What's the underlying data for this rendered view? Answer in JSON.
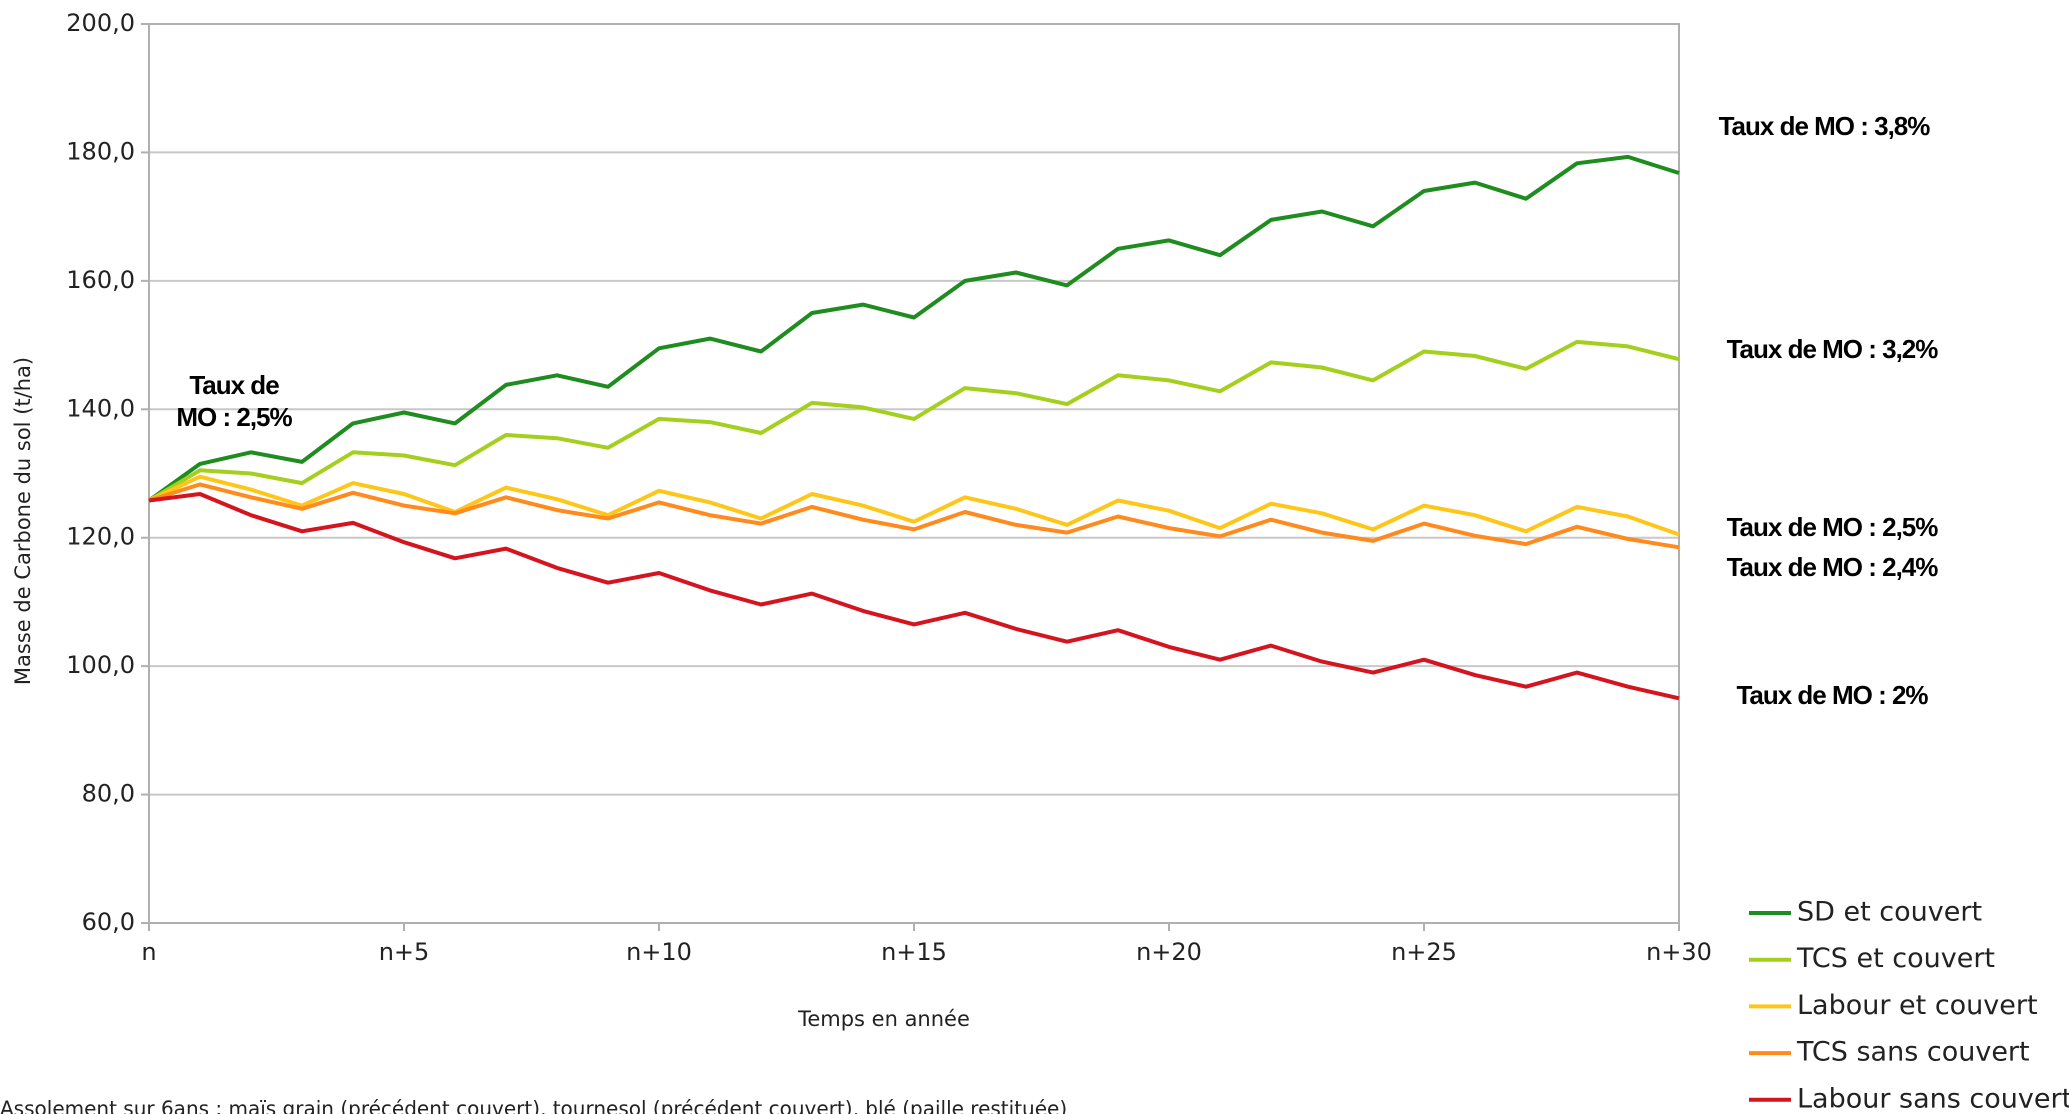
{
  "chart_data": {
    "type": "line",
    "x_label": "Temps en année",
    "y_label": "Masse de Carbone du sol (t/ha)",
    "footnote": "Assolement sur 6ans : maïs grain (précédent couvert), tournesol (précédent couvert), blé (paille restituée)",
    "categories": [
      "n",
      null,
      null,
      null,
      null,
      "n+5",
      null,
      null,
      null,
      null,
      "n+10",
      null,
      null,
      null,
      null,
      "n+15",
      null,
      null,
      null,
      null,
      "n+20",
      null,
      null,
      null,
      null,
      "n+25",
      null,
      null,
      null,
      null,
      "n+30"
    ],
    "ylim": [
      60,
      200
    ],
    "yticks": [
      {
        "value": 60,
        "label": "60,0"
      },
      {
        "value": 80,
        "label": "80,0"
      },
      {
        "value": 100,
        "label": "100,0"
      },
      {
        "value": 120,
        "label": "120,0"
      },
      {
        "value": 140,
        "label": "140,0"
      },
      {
        "value": 160,
        "label": "160,0"
      },
      {
        "value": 180,
        "label": "180,0"
      },
      {
        "value": 200,
        "label": "200,0"
      }
    ],
    "grid": true,
    "legend": "bottom-right",
    "series": [
      {
        "name": "SD et couvert",
        "color": "#1e8c1e",
        "values": [
          125.8,
          131.5,
          133.3,
          131.8,
          137.8,
          139.5,
          137.8,
          143.8,
          145.3,
          143.5,
          149.5,
          151,
          149,
          155,
          156.3,
          154.3,
          160,
          161.3,
          159.3,
          165,
          166.3,
          164,
          169.5,
          170.8,
          168.5,
          174,
          175.3,
          172.8,
          178.3,
          179.3,
          176.8
        ]
      },
      {
        "name": "TCS et couvert",
        "color": "#a5cf1e",
        "values": [
          125.8,
          130.5,
          130,
          128.5,
          133.3,
          132.8,
          131.3,
          136,
          135.5,
          134,
          138.5,
          138,
          136.3,
          141,
          140.3,
          138.5,
          143.3,
          142.5,
          140.8,
          145.3,
          144.5,
          142.8,
          147.3,
          146.5,
          144.5,
          149,
          148.3,
          146.3,
          150.5,
          149.8,
          147.8
        ]
      },
      {
        "name": "Labour et couvert",
        "color": "#ffc61a",
        "values": [
          125.8,
          129.5,
          127.5,
          125,
          128.5,
          126.8,
          124,
          127.8,
          126,
          123.5,
          127.3,
          125.5,
          123,
          126.8,
          125,
          122.5,
          126.3,
          124.5,
          122,
          125.8,
          124.2,
          121.5,
          125.3,
          123.8,
          121.3,
          125,
          123.5,
          121,
          124.8,
          123.3,
          120.5
        ]
      },
      {
        "name": "TCS sans couvert",
        "color": "#ff8a1e",
        "values": [
          125.8,
          128.3,
          126.3,
          124.5,
          127,
          125,
          123.8,
          126.3,
          124.3,
          123,
          125.5,
          123.5,
          122.2,
          124.8,
          122.8,
          121.3,
          124,
          122,
          120.8,
          123.3,
          121.5,
          120.2,
          122.8,
          120.8,
          119.5,
          122.2,
          120.3,
          119,
          121.7,
          119.8,
          118.5
        ]
      },
      {
        "name": "Labour sans couvert",
        "color": "#d4141e",
        "values": [
          125.8,
          126.8,
          123.5,
          121,
          122.3,
          119.3,
          116.8,
          118.3,
          115.3,
          113,
          114.5,
          111.8,
          109.6,
          111.3,
          108.6,
          106.5,
          108.3,
          105.8,
          103.8,
          105.6,
          103,
          101,
          103.2,
          100.7,
          99,
          101,
          98.6,
          96.8,
          99,
          96.8,
          95
        ]
      }
    ],
    "annotations": [
      {
        "lines": [
          "Taux de",
          "MO : 2,5%"
        ]
      },
      {
        "lines": [
          "Taux de MO : 3,8%"
        ]
      },
      {
        "lines": [
          "Taux de MO : 3,2%"
        ]
      },
      {
        "lines": [
          "Taux de MO : 2,5%"
        ]
      },
      {
        "lines": [
          "Taux de MO : 2,4%"
        ]
      },
      {
        "lines": [
          "Taux de MO : 2%"
        ]
      }
    ]
  }
}
